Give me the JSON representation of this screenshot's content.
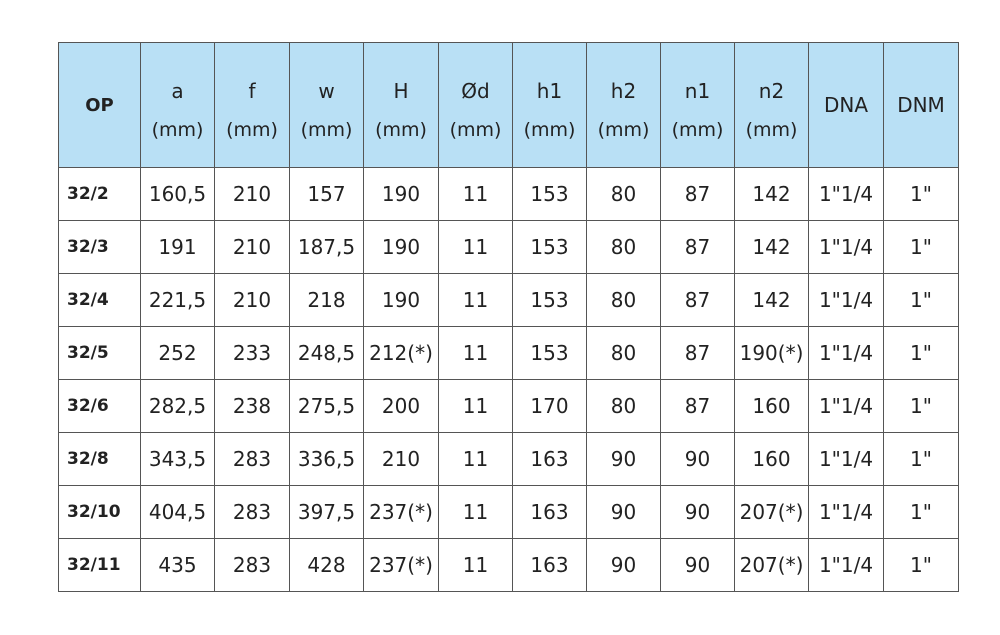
{
  "table": {
    "headers": [
      {
        "name": "OP",
        "unit": ""
      },
      {
        "name": "a",
        "unit": "(mm)"
      },
      {
        "name": "f",
        "unit": "(mm)"
      },
      {
        "name": "w",
        "unit": "(mm)"
      },
      {
        "name": "H",
        "unit": "(mm)"
      },
      {
        "name": "Ød",
        "unit": "(mm)"
      },
      {
        "name": "h1",
        "unit": "(mm)"
      },
      {
        "name": "h2",
        "unit": "(mm)"
      },
      {
        "name": "n1",
        "unit": "(mm)"
      },
      {
        "name": "n2",
        "unit": "(mm)"
      },
      {
        "name": "DNA",
        "unit": ""
      },
      {
        "name": "DNM",
        "unit": ""
      }
    ],
    "rows": [
      [
        "32/2",
        "160,5",
        "210",
        "157",
        "190",
        "11",
        "153",
        "80",
        "87",
        "142",
        "1\"1/4",
        "1\""
      ],
      [
        "32/3",
        "191",
        "210",
        "187,5",
        "190",
        "11",
        "153",
        "80",
        "87",
        "142",
        "1\"1/4",
        "1\""
      ],
      [
        "32/4",
        "221,5",
        "210",
        "218",
        "190",
        "11",
        "153",
        "80",
        "87",
        "142",
        "1\"1/4",
        "1\""
      ],
      [
        "32/5",
        "252",
        "233",
        "248,5",
        "212(*)",
        "11",
        "153",
        "80",
        "87",
        "190(*)",
        "1\"1/4",
        "1\""
      ],
      [
        "32/6",
        "282,5",
        "238",
        "275,5",
        "200",
        "11",
        "170",
        "80",
        "87",
        "160",
        "1\"1/4",
        "1\""
      ],
      [
        "32/8",
        "343,5",
        "283",
        "336,5",
        "210",
        "11",
        "163",
        "90",
        "90",
        "160",
        "1\"1/4",
        "1\""
      ],
      [
        "32/10",
        "404,5",
        "283",
        "397,5",
        "237(*)",
        "11",
        "163",
        "90",
        "90",
        "207(*)",
        "1\"1/4",
        "1\""
      ],
      [
        "32/11",
        "435",
        "283",
        "428",
        "237(*)",
        "11",
        "163",
        "90",
        "90",
        "207(*)",
        "1\"1/4",
        "1\""
      ]
    ]
  },
  "colors": {
    "header_bg": "#b9e0f5",
    "border": "#555555"
  }
}
